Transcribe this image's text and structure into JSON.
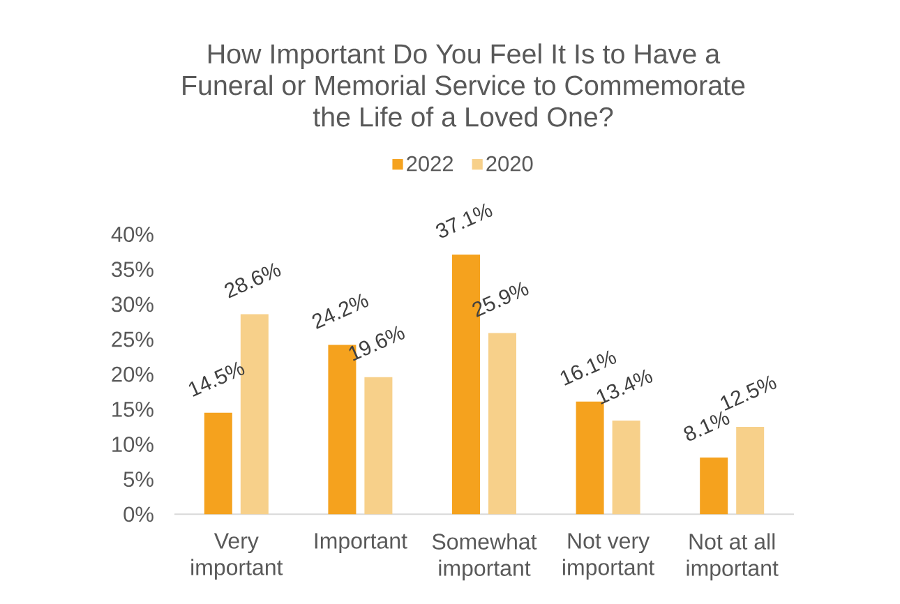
{
  "chart_data": {
    "type": "bar",
    "title": "How Important Do You Feel It Is to Have a Funeral or Memorial Service to Commemorate the Life of a Loved One?",
    "categories": [
      "Very important",
      "Important",
      "Somewhat important",
      "Not very important",
      "Not at all important"
    ],
    "series": [
      {
        "name": "2022",
        "color": "#F5A21E",
        "values": [
          14.5,
          24.2,
          37.1,
          16.1,
          8.1
        ],
        "value_labels": [
          "14.5%",
          "24.2%",
          "37.1%",
          "16.1%",
          "8.1%"
        ]
      },
      {
        "name": "2020",
        "color": "#F7D08A",
        "values": [
          28.6,
          19.6,
          25.9,
          13.4,
          12.5
        ],
        "value_labels": [
          "28.6%",
          "19.6%",
          "25.9%",
          "13.4%",
          "12.5%"
        ]
      }
    ],
    "ylim": [
      0,
      40
    ],
    "yticks": [
      {
        "value": 0,
        "label": "0%"
      },
      {
        "value": 5,
        "label": "5%"
      },
      {
        "value": 10,
        "label": "10%"
      },
      {
        "value": 15,
        "label": "15%"
      },
      {
        "value": 20,
        "label": "20%"
      },
      {
        "value": 25,
        "label": "25%"
      },
      {
        "value": 30,
        "label": "30%"
      },
      {
        "value": 35,
        "label": "35%"
      },
      {
        "value": 40,
        "label": "40%"
      }
    ],
    "legend": "top"
  }
}
